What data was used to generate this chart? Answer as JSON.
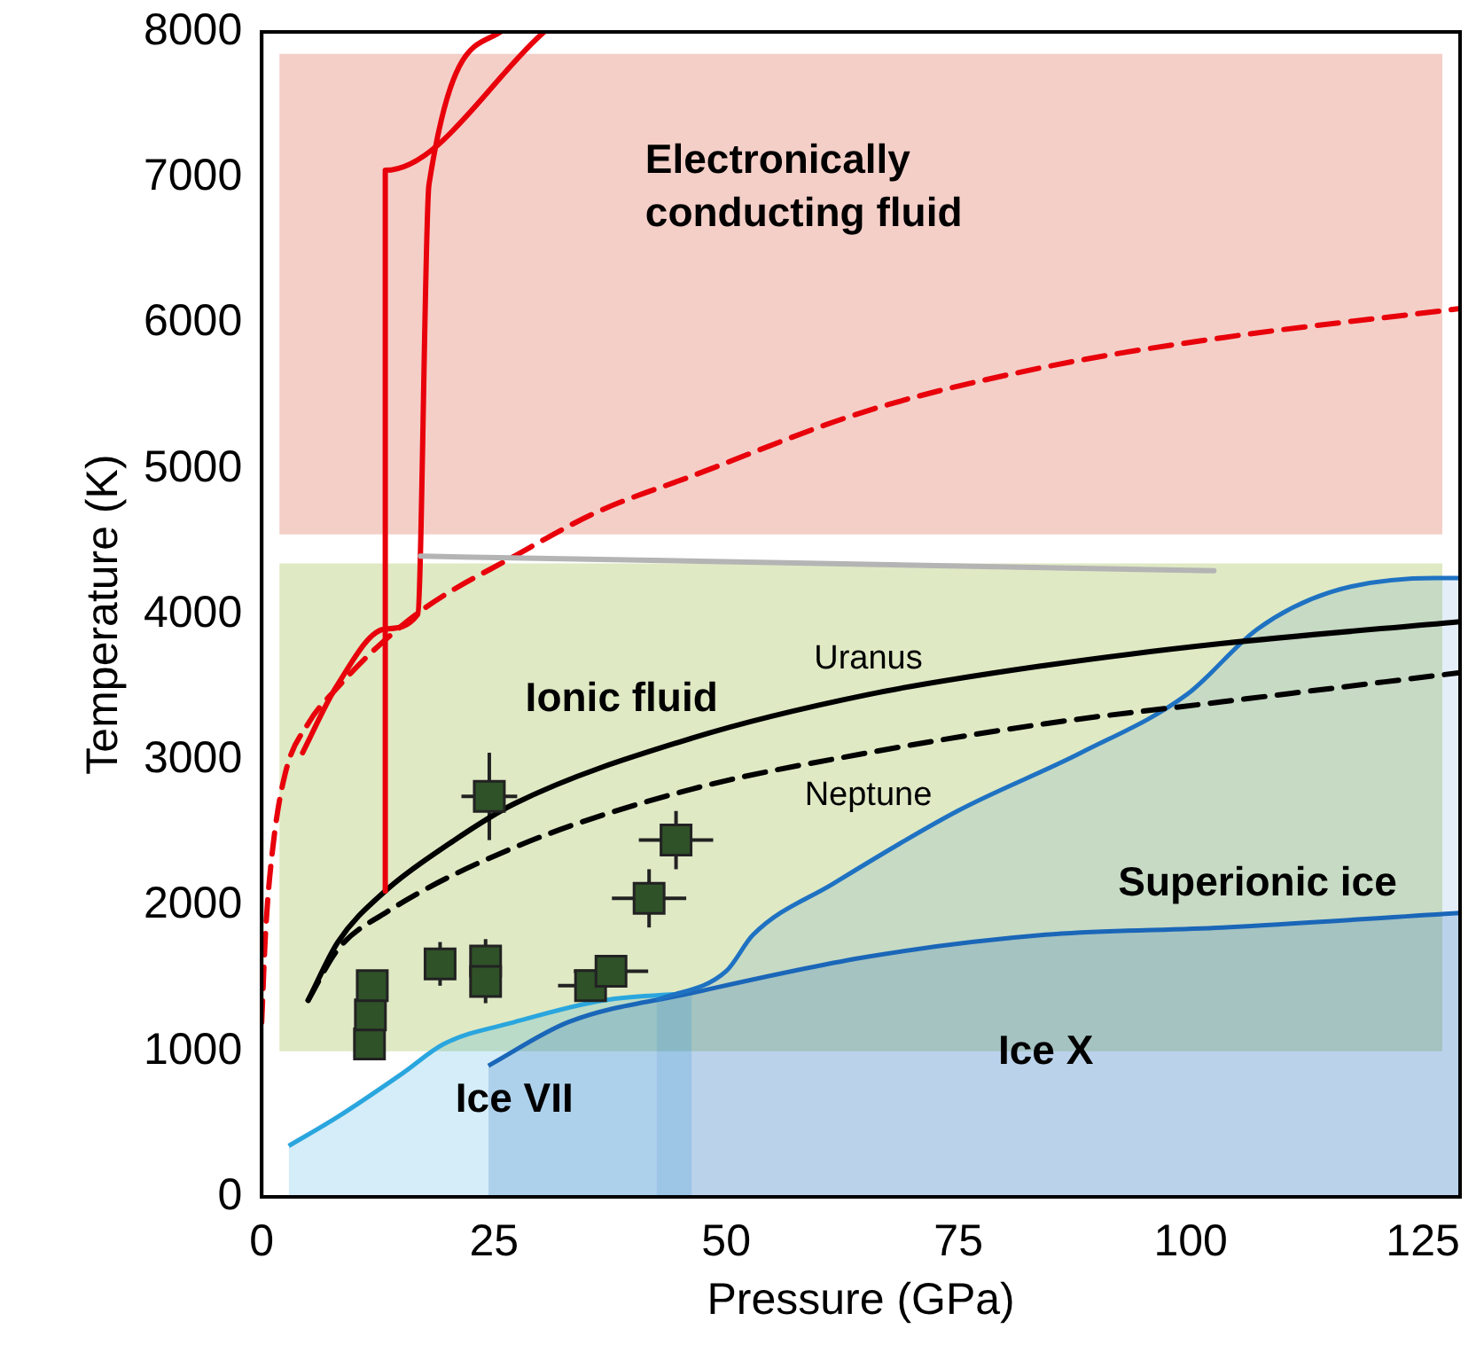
{
  "chart_data": {
    "type": "line",
    "xlabel": "Pressure (GPa)",
    "ylabel": "Temperature (K)",
    "xlim": [
      0,
      129
    ],
    "xticks": [
      0,
      25,
      50,
      75,
      100,
      125
    ],
    "ylim": [
      0,
      8000
    ],
    "yticks": [
      0,
      1000,
      2000,
      3000,
      4000,
      5000,
      6000,
      7000,
      8000
    ],
    "grid": false,
    "legend": false,
    "bands": [
      {
        "axis": "y",
        "from": 4550,
        "to": 7850,
        "color": "#f4cfc8",
        "label": "Electronically conducting fluid"
      },
      {
        "axis": "y",
        "from": 1000,
        "to": 4350,
        "color": "#dfe9c4",
        "label": "Ionic fluid"
      }
    ],
    "series": [
      {
        "type": "area",
        "name": "Superionic ice",
        "color": "#1f72c2",
        "x": [
          42.5,
          50,
          52.9,
          61.5,
          74.9,
          88.2,
          99.6,
          107.2,
          114.9,
          126.3,
          129
        ],
        "values": [
          1350,
          1550,
          1800,
          2150,
          2650,
          3050,
          3450,
          3900,
          4150,
          4250,
          4250
        ]
      },
      {
        "type": "area",
        "name": "Ice X",
        "color": "#1a66b8",
        "x": [
          24.4,
          33,
          46.3,
          65.3,
          84.4,
          103.4,
          129
        ],
        "values": [
          900,
          1200,
          1400,
          1650,
          1800,
          1850,
          1950
        ]
      },
      {
        "type": "area",
        "name": "Ice VII",
        "color": "#2aa6de",
        "x": [
          2.9,
          8.2,
          15.2,
          19.6,
          27.2,
          36.8,
          46.3
        ],
        "values": [
          350,
          550,
          850,
          1050,
          1200,
          1350,
          1400
        ]
      },
      {
        "color": "#b4b4b4",
        "line_style": "solid",
        "x": [
          17.1,
          102.5
        ],
        "values": [
          4400,
          4300
        ]
      },
      {
        "color": "#e8000b",
        "line_style": "dashed",
        "x": [
          0,
          0.4,
          1.2,
          2.5,
          5,
          8.2,
          12,
          17.7,
          27.2,
          36,
          46.3,
          65.3,
          84.4,
          103.4,
          129
        ],
        "values": [
          1200,
          1800,
          2400,
          2900,
          3250,
          3500,
          3750,
          4050,
          4400,
          4700,
          4950,
          5400,
          5700,
          5900,
          6100
        ]
      },
      {
        "color": "#e8000b",
        "line_style": "solid",
        "x": [
          4.4,
          8,
          13.3,
          16.8,
          18,
          25.7
        ],
        "values": [
          3050,
          3500,
          3900,
          4000,
          6950,
          8000
        ]
      },
      {
        "color": "#e8000b",
        "line_style": "solid",
        "x": [
          13.3,
          13.3,
          30.4
        ],
        "values": [
          2100,
          7050,
          8000
        ]
      },
      {
        "name": "Uranus",
        "color": "#000000",
        "line_style": "solid",
        "x": [
          5,
          8.2,
          13.3,
          19.6,
          27.2,
          46.3,
          65.3,
          84.4,
          103.4,
          129
        ],
        "values": [
          1350,
          1750,
          2100,
          2400,
          2700,
          3150,
          3450,
          3650,
          3800,
          3950
        ]
      },
      {
        "name": "Neptune",
        "color": "#000000",
        "line_style": "dashed",
        "x": [
          5,
          8.2,
          13.3,
          27.2,
          46.3,
          65.3,
          84.4,
          103.4,
          129
        ],
        "values": [
          1350,
          1700,
          1950,
          2400,
          2800,
          3050,
          3250,
          3400,
          3600
        ]
      },
      {
        "type": "scatter",
        "color": "#2f5228",
        "marker": "square",
        "x": [
          11.6,
          11.7,
          11.9,
          19.2,
          24.1,
          24.1,
          24.5,
          35.4,
          37.6,
          41.7,
          44.6
        ],
        "values": [
          1050,
          1250,
          1450,
          1600,
          1620,
          1480,
          2750,
          1450,
          1550,
          2050,
          2450
        ],
        "errors": [
          null,
          null,
          100,
          150,
          150,
          150,
          300,
          null,
          100,
          200,
          200
        ],
        "xerrors": [
          null,
          null,
          null,
          null,
          1.5,
          1.5,
          3,
          3.5,
          4,
          4,
          4
        ]
      }
    ]
  }
}
